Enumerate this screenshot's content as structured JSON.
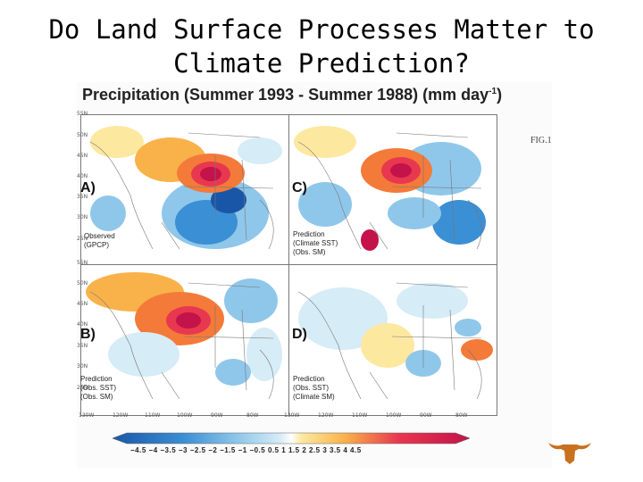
{
  "slide": {
    "title_line1": "Do Land Surface Processes Matter to",
    "title_line2": "Climate Prediction?"
  },
  "figure": {
    "title": "Precipitation (Summer 1993 - Summer 1988) (mm day",
    "title_sup": "-1",
    "title_end": ")",
    "tag": "FIG.1",
    "lat_labels": [
      "55N",
      "50N",
      "45N",
      "40N",
      "35N",
      "30N",
      "25N",
      "55N",
      "50N",
      "45N",
      "40N",
      "35N",
      "30N",
      "25N"
    ],
    "lon_labels": [
      "130W",
      "120W",
      "110W",
      "100W",
      "90W",
      "80W",
      "130W",
      "120W",
      "110W",
      "100W",
      "90W",
      "80W"
    ],
    "colorbar_labels": "−4.5 −4 −3.5 −3 −2.5 −2 −1.5 −1 −0.5 0.5 1 1.5 2 2.5 3 3.5 4 4.5",
    "colors": {
      "strong_wet": "#c4124a",
      "wet": "#e8384f",
      "moderate_wet": "#f47a3a",
      "light_wet": "#f9b24a",
      "slight_wet": "#fde8a0",
      "slight_dry": "#d6ecf7",
      "light_dry": "#8fc7ea",
      "dry": "#3b8fd4",
      "strong_dry": "#1a56a8"
    },
    "panels": [
      {
        "id": "A",
        "letter": "A)",
        "caption": "Observed\n(GPCP)"
      },
      {
        "id": "B",
        "letter": "B)",
        "caption": "Prediction\n(Obs. SST)\n(Obs. SM)"
      },
      {
        "id": "C",
        "letter": "C)",
        "caption": "Prediction\n(Climate SST)\n(Obs. SM)"
      },
      {
        "id": "D",
        "letter": "D)",
        "caption": "Prediction\n(Obs. SST)\n(Climate SM)"
      }
    ]
  }
}
